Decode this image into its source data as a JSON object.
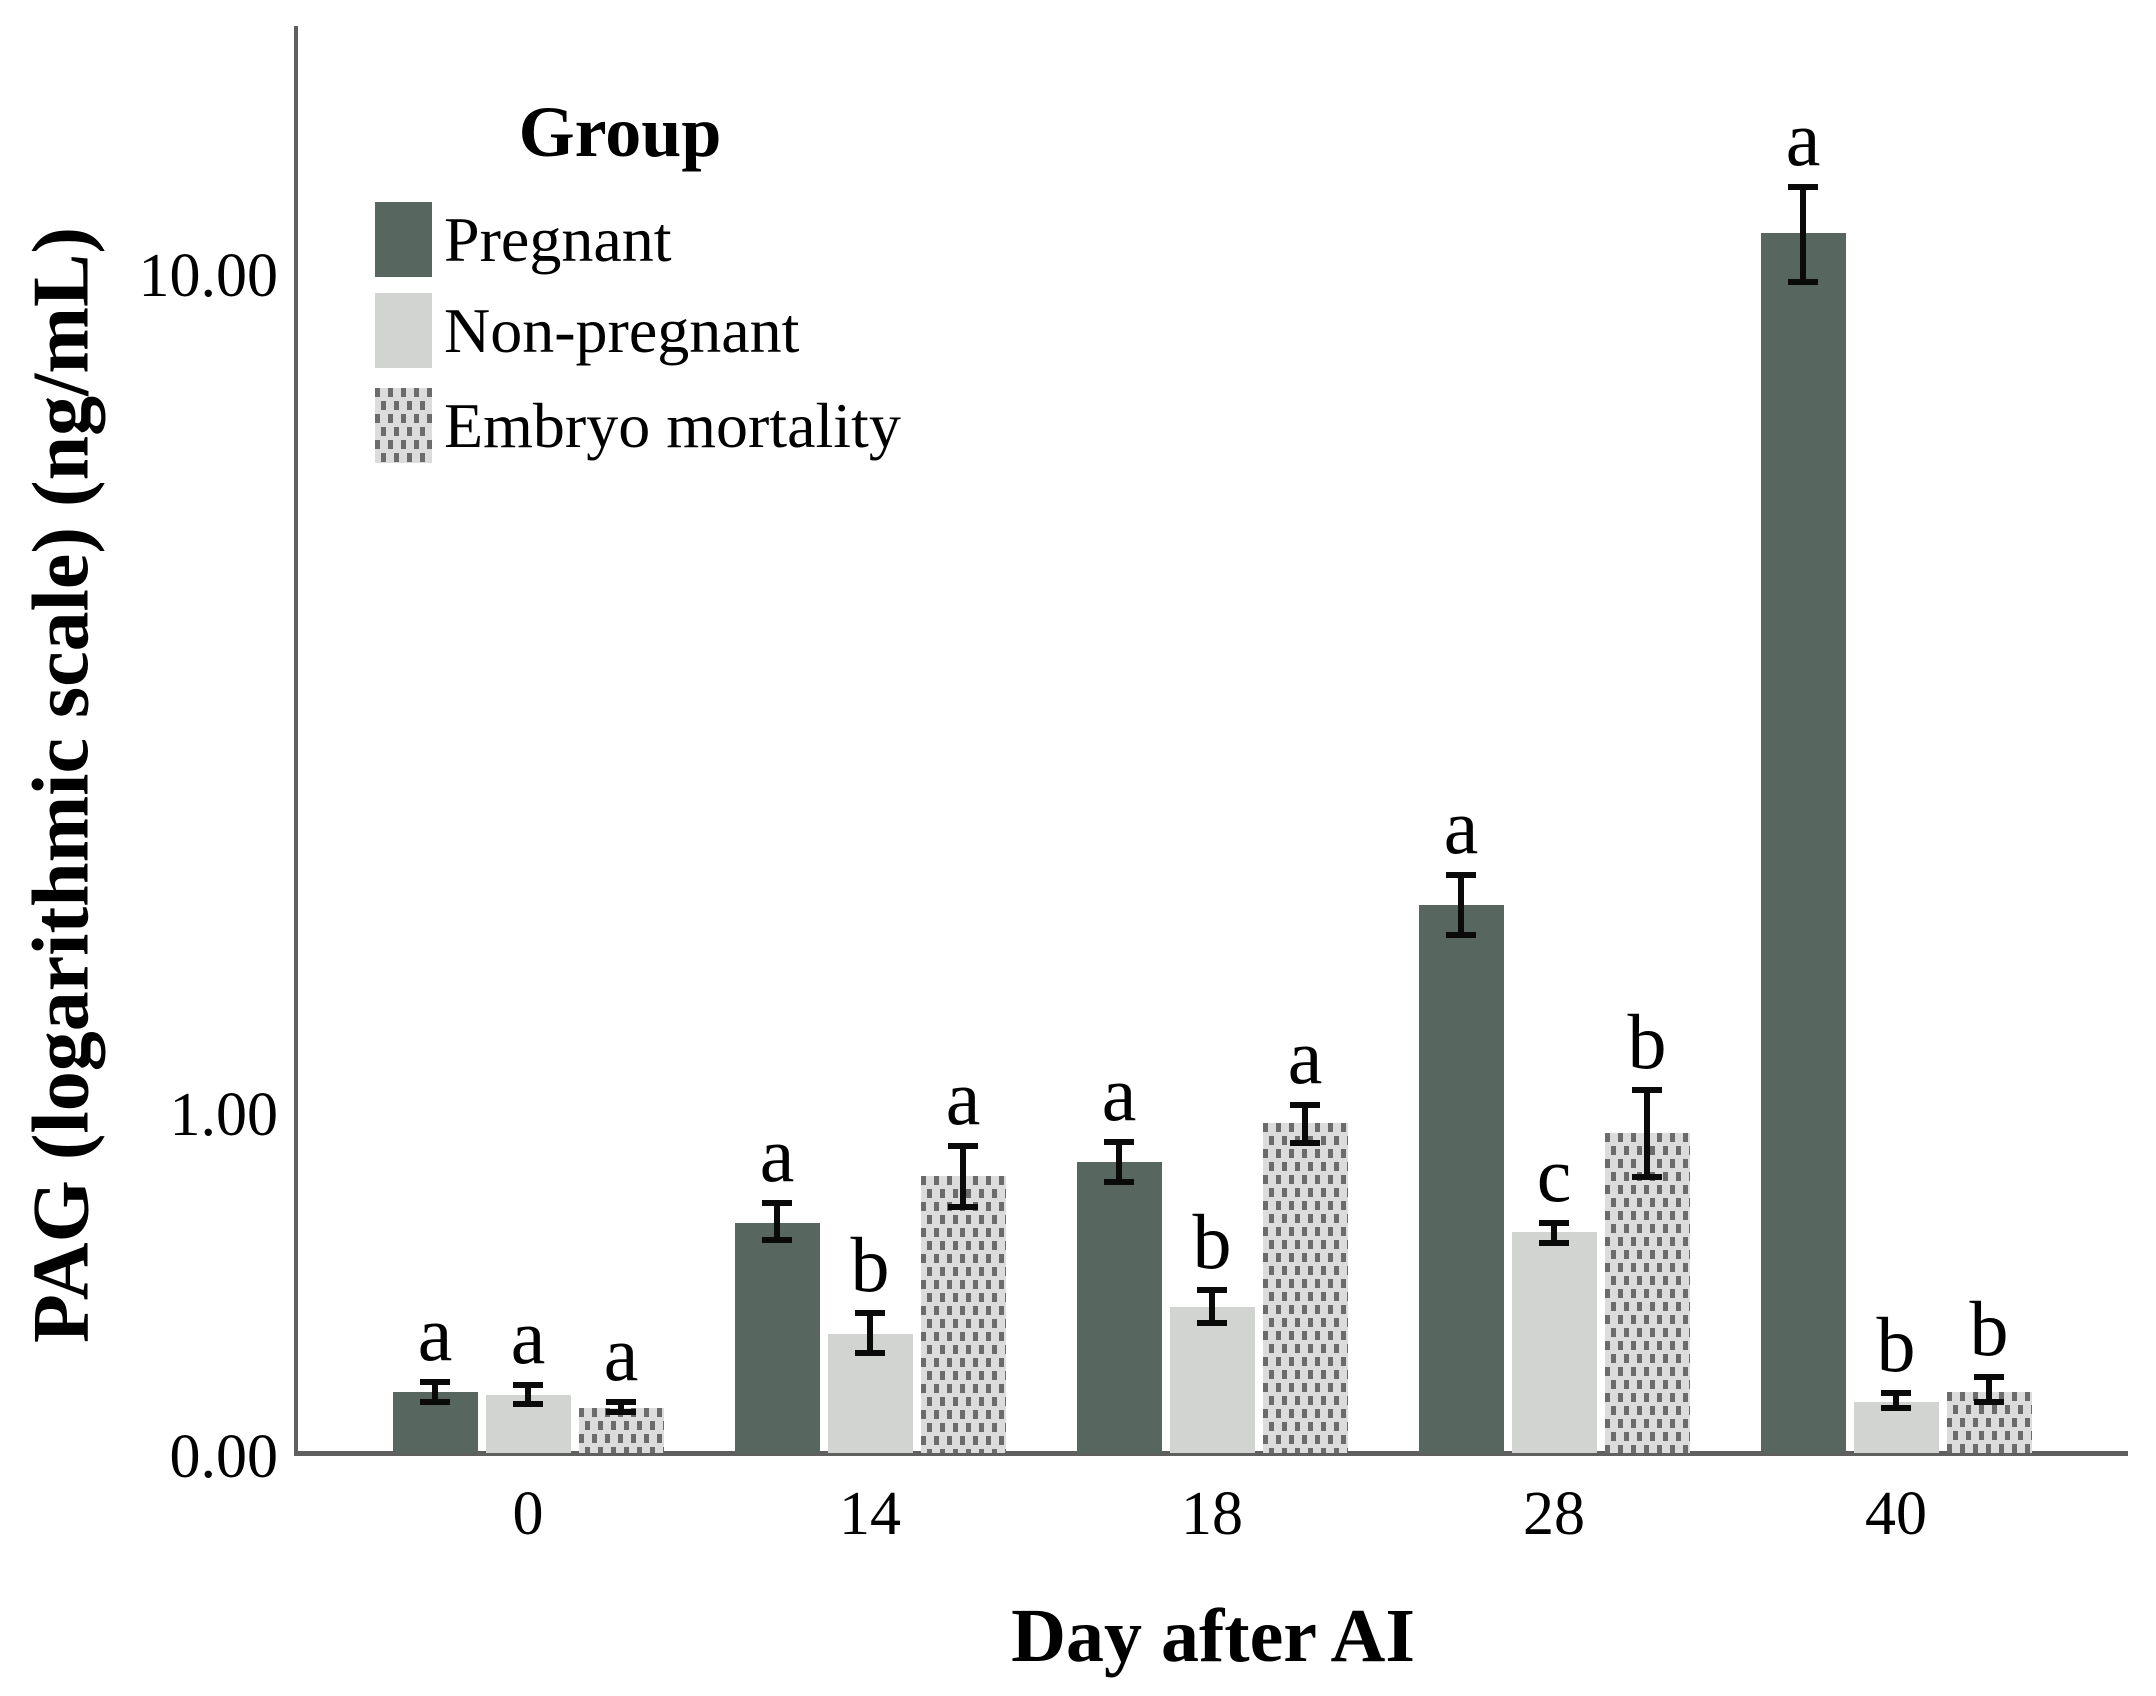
{
  "figure": {
    "background": "#ffffff"
  },
  "legend": {
    "title": "Group",
    "items": [
      {
        "label": "Pregnant",
        "swatch": "pregnant"
      },
      {
        "label": "Non-pregnant",
        "swatch": "nonpregnant"
      },
      {
        "label": "Embryo mortality",
        "swatch": "embryo"
      }
    ]
  },
  "colors": {
    "pregnant": "#57665f",
    "nonpregnant": "#d2d4d2",
    "embryo_bg": "#dcdcdc",
    "embryo_dash": "#6b6b6b",
    "axis": "#5f5f5f",
    "error_bar": "#0a0a0a",
    "text": "#000000"
  },
  "chart_data": {
    "type": "bar",
    "title": "",
    "xlabel": "Day after AI",
    "ylabel": "PAG (logarithmic scale) (ng/mL)",
    "y_scale": "log",
    "grid": false,
    "legend_position": "top-left-inside",
    "y_tick_labels": [
      "10.00",
      "1.00",
      "0.00"
    ],
    "y_tick_values": [
      10,
      1,
      0
    ],
    "categories": [
      "0",
      "14",
      "18",
      "28",
      "40"
    ],
    "series": [
      {
        "name": "Pregnant",
        "values": [
          0.468,
          0.743,
          0.879,
          1.78,
          11.26
        ],
        "err_high": [
          0.481,
          0.785,
          0.928,
          1.933,
          12.78
        ],
        "err_low": [
          0.455,
          0.71,
          0.832,
          1.637,
          9.83
        ],
        "sig_letters": [
          "a",
          "a",
          "a",
          "a",
          "a"
        ]
      },
      {
        "name": "Non-pregnant",
        "values": [
          0.464,
          0.548,
          0.59,
          0.726,
          0.455
        ],
        "err_high": [
          0.476,
          0.58,
          0.618,
          0.744,
          0.466
        ],
        "err_low": [
          0.453,
          0.52,
          0.565,
          0.704,
          0.447
        ],
        "sig_letters": [
          "a",
          "b",
          "b",
          "c",
          "b"
        ]
      },
      {
        "name": "Embryo mortality",
        "values": [
          0.447,
          0.846,
          0.978,
          0.952,
          0.468
        ],
        "err_high": [
          0.455,
          0.918,
          1.028,
          1.071,
          0.487
        ],
        "err_low": [
          0.443,
          0.777,
          0.926,
          0.843,
          0.455
        ],
        "sig_letters": [
          "a",
          "a",
          "a",
          "b",
          "b"
        ]
      }
    ]
  }
}
